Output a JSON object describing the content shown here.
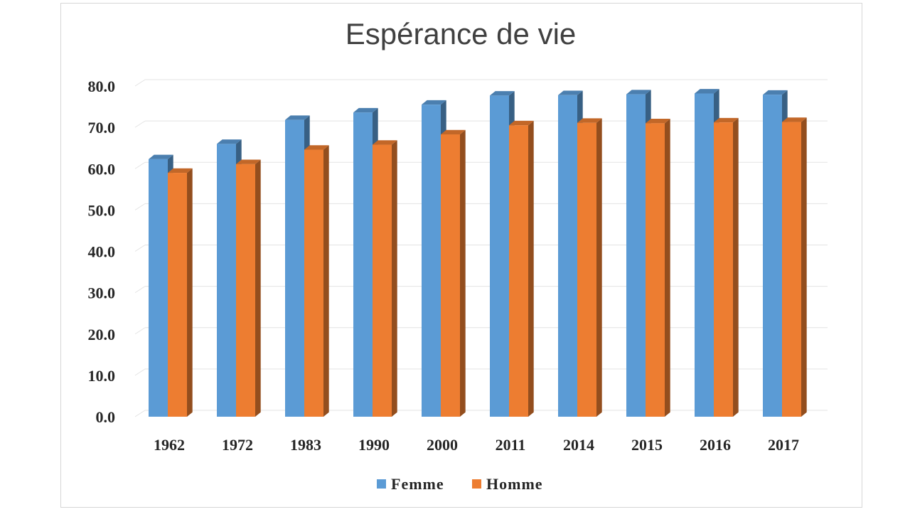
{
  "chart_data": {
    "type": "bar",
    "title": "Espérance de vie",
    "xlabel": "",
    "ylabel": "",
    "categories": [
      "1962",
      "1972",
      "1983",
      "1990",
      "2000",
      "2011",
      "2014",
      "2015",
      "2016",
      "2017"
    ],
    "series": [
      {
        "name": "Femme",
        "color": "#5b9bd5",
        "values": [
          62.3,
          66.0,
          71.8,
          73.6,
          75.5,
          77.7,
          77.8,
          78.0,
          78.2,
          77.9
        ]
      },
      {
        "name": "Homme",
        "color": "#ed7d31",
        "values": [
          59.0,
          61.1,
          64.6,
          65.8,
          68.3,
          70.5,
          71.1,
          71.0,
          71.2,
          71.3
        ]
      }
    ],
    "ylim": [
      0,
      80
    ],
    "yticks": [
      "0.0",
      "10.0",
      "20.0",
      "30.0",
      "40.0",
      "50.0",
      "60.0",
      "70.0",
      "80.0"
    ],
    "grid": true,
    "legend_position": "bottom"
  }
}
